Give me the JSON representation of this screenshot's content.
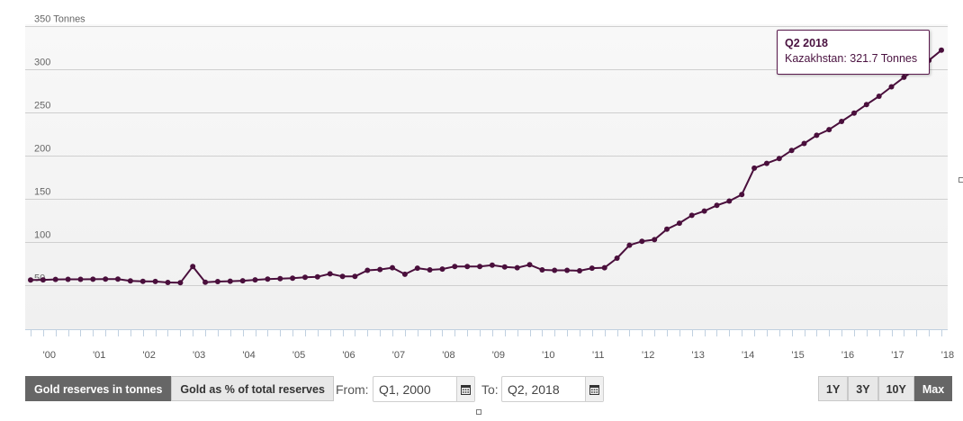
{
  "chart_data": {
    "type": "line",
    "ylabel": "Tonnes",
    "y_unit": "Tonnes",
    "ylim": [
      0,
      350
    ],
    "yticks": [
      50,
      100,
      150,
      200,
      250,
      300,
      350
    ],
    "ytick_labels": [
      "50",
      "100",
      "150",
      "200",
      "250",
      "300",
      "350 Tonnes"
    ],
    "xtick_labels": [
      "'00",
      "'01",
      "'02",
      "'03",
      "'04",
      "'05",
      "'06",
      "'07",
      "'08",
      "'09",
      "'10",
      "'11",
      "'12",
      "'13",
      "'14",
      "'15",
      "'16",
      "'17",
      "'18"
    ],
    "grid": true,
    "x_start": "Q1 2000",
    "series": [
      {
        "name": "Kazakhstan",
        "color": "#4a0f3c",
        "values": [
          56.3,
          56.5,
          57.0,
          57.1,
          57.1,
          57.2,
          57.4,
          57.3,
          55.3,
          54.9,
          54.6,
          53.5,
          53.2,
          72.0,
          53.8,
          54.5,
          55.0,
          55.5,
          56.5,
          57.5,
          58.0,
          58.5,
          59.5,
          60.0,
          63.5,
          60.5,
          60.5,
          67.5,
          68.5,
          70.5,
          63.0,
          70.0,
          68.0,
          69.0,
          72.0,
          72.0,
          72.0,
          73.5,
          71.5,
          70.5,
          74.0,
          68.0,
          67.5,
          67.5,
          67.0,
          70.0,
          70.5,
          81.5,
          96.5,
          101.0,
          103.0,
          115.0,
          122.0,
          131.0,
          136.0,
          142.5,
          147.5,
          155.0,
          185.5,
          191.0,
          196.5,
          206.0,
          214.0,
          223.5,
          230.0,
          239.5,
          249.0,
          259.0,
          268.5,
          279.5,
          290.5,
          300.5,
          310.0,
          321.7
        ]
      }
    ],
    "tooltip": {
      "title": "Q2 2018",
      "text": "Kazakhstan: 321.7 Tonnes"
    }
  },
  "controls": {
    "mode_buttons": [
      {
        "label": "Gold reserves in tonnes",
        "active": true
      },
      {
        "label": "Gold as % of total reserves",
        "active": false
      }
    ],
    "from_label": "From:",
    "from_value": "Q1, 2000",
    "to_label": "To:",
    "to_value": "Q2, 2018",
    "zoom_buttons": [
      {
        "label": "1Y",
        "active": false
      },
      {
        "label": "3Y",
        "active": false
      },
      {
        "label": "10Y",
        "active": false
      },
      {
        "label": "Max",
        "active": true
      }
    ]
  },
  "colors": {
    "line": "#4a0f3c",
    "grid": "#cfcfcf",
    "plot_background": "#f4f4f4",
    "active_button": "#666666"
  }
}
